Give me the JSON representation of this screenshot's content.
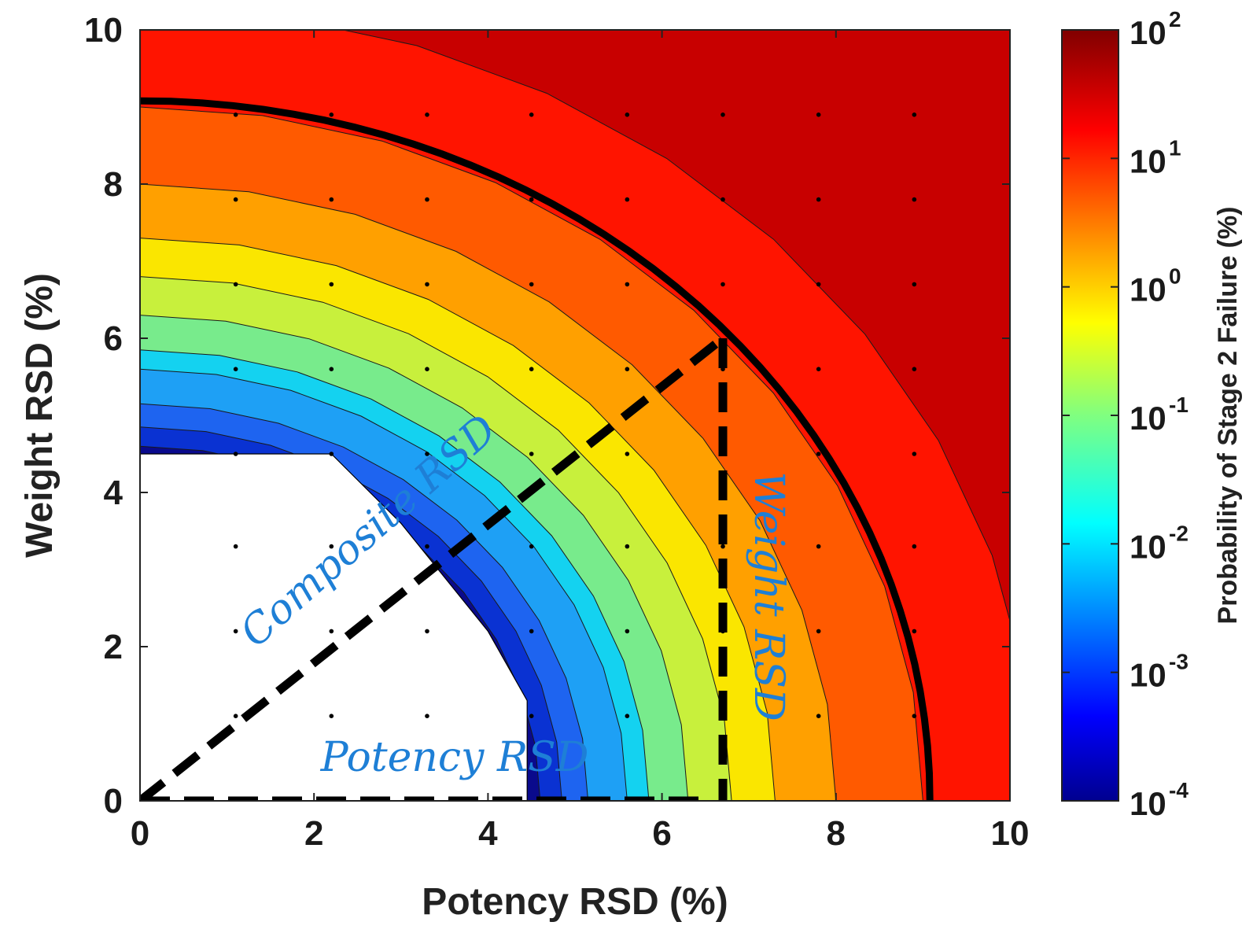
{
  "chart_data": {
    "type": "heatmap",
    "subtype": "filled-contour",
    "xlabel": "Potency RSD (%)",
    "ylabel": "Weight RSD (%)",
    "xlim": [
      0,
      10
    ],
    "ylim": [
      0,
      10
    ],
    "x_ticks": [
      "0",
      "2",
      "4",
      "6",
      "8",
      "10"
    ],
    "y_ticks": [
      "0",
      "2",
      "4",
      "6",
      "8",
      "10"
    ],
    "colorbar": {
      "label": "Probability of Stage 2 Failure (%)",
      "scale": "log",
      "range_log10": [
        -4,
        2
      ],
      "tick_bases": [
        "10",
        "10",
        "10",
        "10",
        "10",
        "10",
        "10"
      ],
      "tick_exponents": [
        "2",
        "1",
        "0",
        "-1",
        "-2",
        "-3",
        "-4"
      ],
      "tick_log_values": [
        2,
        1,
        0,
        -1,
        -2,
        -3,
        -4
      ]
    },
    "contour_levels": [
      {
        "level_log10": -3.75,
        "radius_rsd": 4.6,
        "color": "#0a0a8c"
      },
      {
        "level_log10": -3.25,
        "radius_rsd": 4.85,
        "color": "#0a32d2"
      },
      {
        "level_log10": -2.75,
        "radius_rsd": 5.15,
        "color": "#1e64f0"
      },
      {
        "level_log10": -2.25,
        "radius_rsd": 5.6,
        "color": "#1ea0f5"
      },
      {
        "level_log10": -1.75,
        "radius_rsd": 5.85,
        "color": "#14d2f0"
      },
      {
        "level_log10": -1.25,
        "radius_rsd": 6.3,
        "color": "#78eb8c"
      },
      {
        "level_log10": -0.75,
        "radius_rsd": 6.8,
        "color": "#c8f03c"
      },
      {
        "level_log10": -0.25,
        "radius_rsd": 7.3,
        "color": "#fae600"
      },
      {
        "level_log10": 0.35,
        "radius_rsd": 8.0,
        "color": "#ffa000"
      },
      {
        "level_log10": 1.0,
        "radius_rsd": 9.0,
        "color": "#ff5a00"
      },
      {
        "level_log10": 1.5,
        "radius_rsd": 10.3,
        "color": "#ff1400"
      },
      {
        "level_log10": 1.9,
        "radius_rsd": 14.5,
        "color": "#c80000"
      }
    ],
    "white_region": {
      "description": "no data (below lowest contour)",
      "polygon_xy": [
        [
          0,
          4.5
        ],
        [
          1.1,
          4.5
        ],
        [
          2.2,
          4.5
        ],
        [
          3.0,
          3.6
        ],
        [
          4.0,
          2.2
        ],
        [
          4.45,
          1.3
        ],
        [
          4.45,
          0
        ],
        [
          0,
          0
        ]
      ]
    },
    "threshold_contour_radius_rsd": 9.08,
    "grid_points": [
      1.1,
      2.2,
      3.3,
      4.5,
      5.6,
      6.7,
      7.8,
      8.9
    ],
    "dashed_lines": [
      {
        "name": "composite-rsd",
        "from": [
          0,
          0
        ],
        "to": [
          6.7,
          6.0
        ]
      },
      {
        "name": "potency-rsd",
        "from": [
          0,
          0
        ],
        "to": [
          6.5,
          0
        ]
      },
      {
        "name": "weight-rsd",
        "from": [
          6.7,
          6.0
        ],
        "to": [
          6.7,
          0
        ]
      }
    ],
    "annotations": {
      "composite": "Composite RSD",
      "weight": "Weight RSD",
      "potency": "Potency RSD"
    },
    "colors": {
      "axis": "#222222",
      "dashed_line": "#000000",
      "threshold_line": "#000000",
      "annotation_text": "#1e7fd6"
    }
  }
}
